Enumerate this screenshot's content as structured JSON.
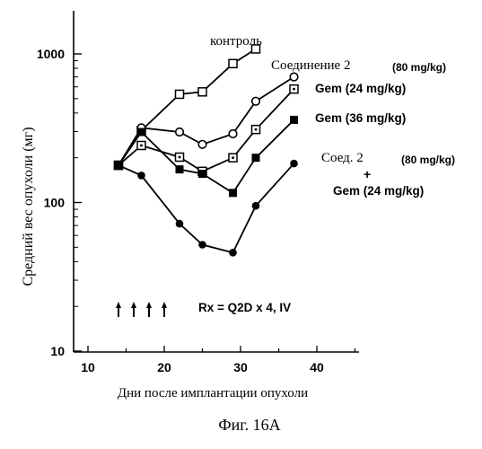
{
  "chart_data": {
    "type": "line",
    "xlabel": "Дни после имплантации опухоли",
    "ylabel": "Средний вес опухоли (мг)",
    "caption": "Фиг. 16A",
    "xlim": [
      10,
      45
    ],
    "ylim": [
      10,
      2000
    ],
    "yscale": "log",
    "xticks": [
      10,
      20,
      30,
      40
    ],
    "yticks": [
      10,
      100,
      1000
    ],
    "annotation": "Rx = Q2D x 4, IV",
    "dosing_days": [
      14,
      16,
      18,
      20
    ],
    "series": [
      {
        "name": "контроль",
        "marker": "open-square",
        "x": [
          14,
          17,
          22,
          25,
          29,
          32
        ],
        "y": [
          178,
          305,
          535,
          555,
          860,
          1080
        ]
      },
      {
        "name": "Соединение 2",
        "dose": "(80 mg/kg)",
        "marker": "open-circle",
        "x": [
          14,
          17,
          22,
          25,
          29,
          32,
          37
        ],
        "y": [
          178,
          318,
          298,
          246,
          290,
          480,
          700
        ]
      },
      {
        "name": "Gem (24 mg/kg)",
        "marker": "dotted-square",
        "x": [
          14,
          17,
          22,
          25,
          29,
          32,
          37
        ],
        "y": [
          178,
          242,
          202,
          162,
          200,
          310,
          580
        ]
      },
      {
        "name": "Gem (36 mg/kg)",
        "marker": "filled-square",
        "x": [
          14,
          17,
          22,
          25,
          29,
          32,
          37
        ],
        "y": [
          178,
          298,
          167,
          156,
          116,
          200,
          360
        ]
      },
      {
        "name_parts": [
          "Соед. 2",
          "(80 mg/kg)",
          "+",
          "Gem (24 mg/kg)"
        ],
        "marker": "filled-circle",
        "x": [
          14,
          17,
          22,
          25,
          29,
          32,
          37
        ],
        "y": [
          178,
          152,
          72,
          52,
          46,
          95,
          183
        ]
      }
    ]
  }
}
